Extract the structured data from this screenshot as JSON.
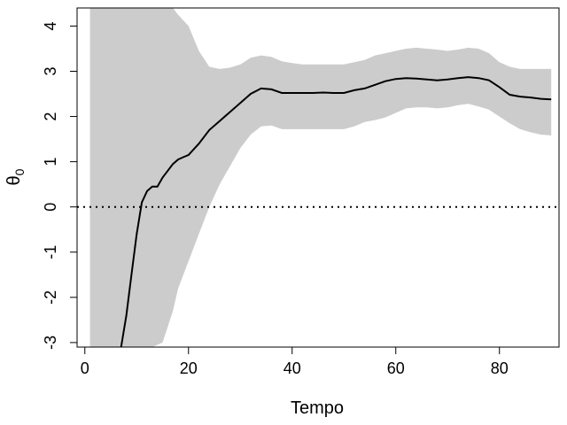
{
  "chart_data": {
    "type": "line",
    "xlabel": "Tempo",
    "ylabel_symbol": "θ",
    "ylabel_subscript": "0",
    "xlim": [
      -1.5,
      91.5
    ],
    "ylim": [
      -3.1,
      4.4
    ],
    "x_ticks": [
      0,
      20,
      40,
      60,
      80
    ],
    "x_tick_labels": [
      "0",
      "20",
      "40",
      "60",
      "80"
    ],
    "y_ticks": [
      -3,
      -2,
      -1,
      0,
      1,
      2,
      3,
      4
    ],
    "y_tick_labels": [
      "-3",
      "-2",
      "-1",
      "0",
      "1",
      "2",
      "3",
      "4"
    ],
    "reference_line": {
      "y": 0,
      "style": "dotted",
      "color": "#000000"
    },
    "band_color": "#cccccc",
    "line_color": "#000000",
    "series": [
      {
        "x": [
          7,
          8,
          9,
          10,
          11,
          12,
          13,
          14,
          15,
          16,
          17,
          18,
          19,
          20,
          22,
          24,
          26,
          28,
          30,
          32,
          34,
          36,
          38,
          40,
          42,
          44,
          46,
          48,
          50,
          52,
          54,
          56,
          58,
          60,
          62,
          64,
          66,
          68,
          70,
          72,
          74,
          76,
          78,
          80,
          82,
          84,
          86,
          88,
          90
        ],
        "values": [
          -3.1,
          -2.4,
          -1.5,
          -0.6,
          0.1,
          0.35,
          0.45,
          0.45,
          0.65,
          0.8,
          0.95,
          1.05,
          1.1,
          1.15,
          1.4,
          1.7,
          1.9,
          2.1,
          2.3,
          2.5,
          2.62,
          2.6,
          2.52,
          2.52,
          2.52,
          2.52,
          2.53,
          2.52,
          2.52,
          2.58,
          2.62,
          2.7,
          2.78,
          2.83,
          2.85,
          2.84,
          2.82,
          2.8,
          2.82,
          2.85,
          2.87,
          2.85,
          2.8,
          2.65,
          2.48,
          2.44,
          2.42,
          2.39,
          2.38
        ]
      }
    ],
    "band": {
      "x": [
        1,
        5,
        10,
        13,
        15,
        17,
        18,
        20,
        22,
        24,
        26,
        28,
        30,
        32,
        34,
        36,
        38,
        40,
        42,
        44,
        46,
        48,
        50,
        52,
        54,
        56,
        58,
        60,
        62,
        64,
        66,
        68,
        70,
        72,
        74,
        76,
        78,
        80,
        82,
        84,
        86,
        88,
        90
      ],
      "lower": [
        -3.1,
        -3.1,
        -3.1,
        -3.1,
        -3.0,
        -2.3,
        -1.8,
        -1.2,
        -0.6,
        0.0,
        0.5,
        0.9,
        1.3,
        1.6,
        1.78,
        1.8,
        1.72,
        1.72,
        1.72,
        1.72,
        1.72,
        1.72,
        1.72,
        1.78,
        1.88,
        1.92,
        1.98,
        2.08,
        2.18,
        2.2,
        2.2,
        2.18,
        2.2,
        2.25,
        2.28,
        2.22,
        2.15,
        2.0,
        1.85,
        1.72,
        1.65,
        1.6,
        1.58
      ],
      "upper": [
        4.4,
        4.4,
        4.4,
        4.4,
        4.4,
        4.4,
        4.25,
        4.0,
        3.45,
        3.1,
        3.05,
        3.08,
        3.15,
        3.3,
        3.35,
        3.32,
        3.22,
        3.18,
        3.15,
        3.15,
        3.15,
        3.15,
        3.15,
        3.2,
        3.25,
        3.35,
        3.4,
        3.45,
        3.5,
        3.52,
        3.5,
        3.48,
        3.45,
        3.48,
        3.52,
        3.5,
        3.4,
        3.2,
        3.1,
        3.05,
        3.05,
        3.05,
        3.05
      ]
    }
  }
}
